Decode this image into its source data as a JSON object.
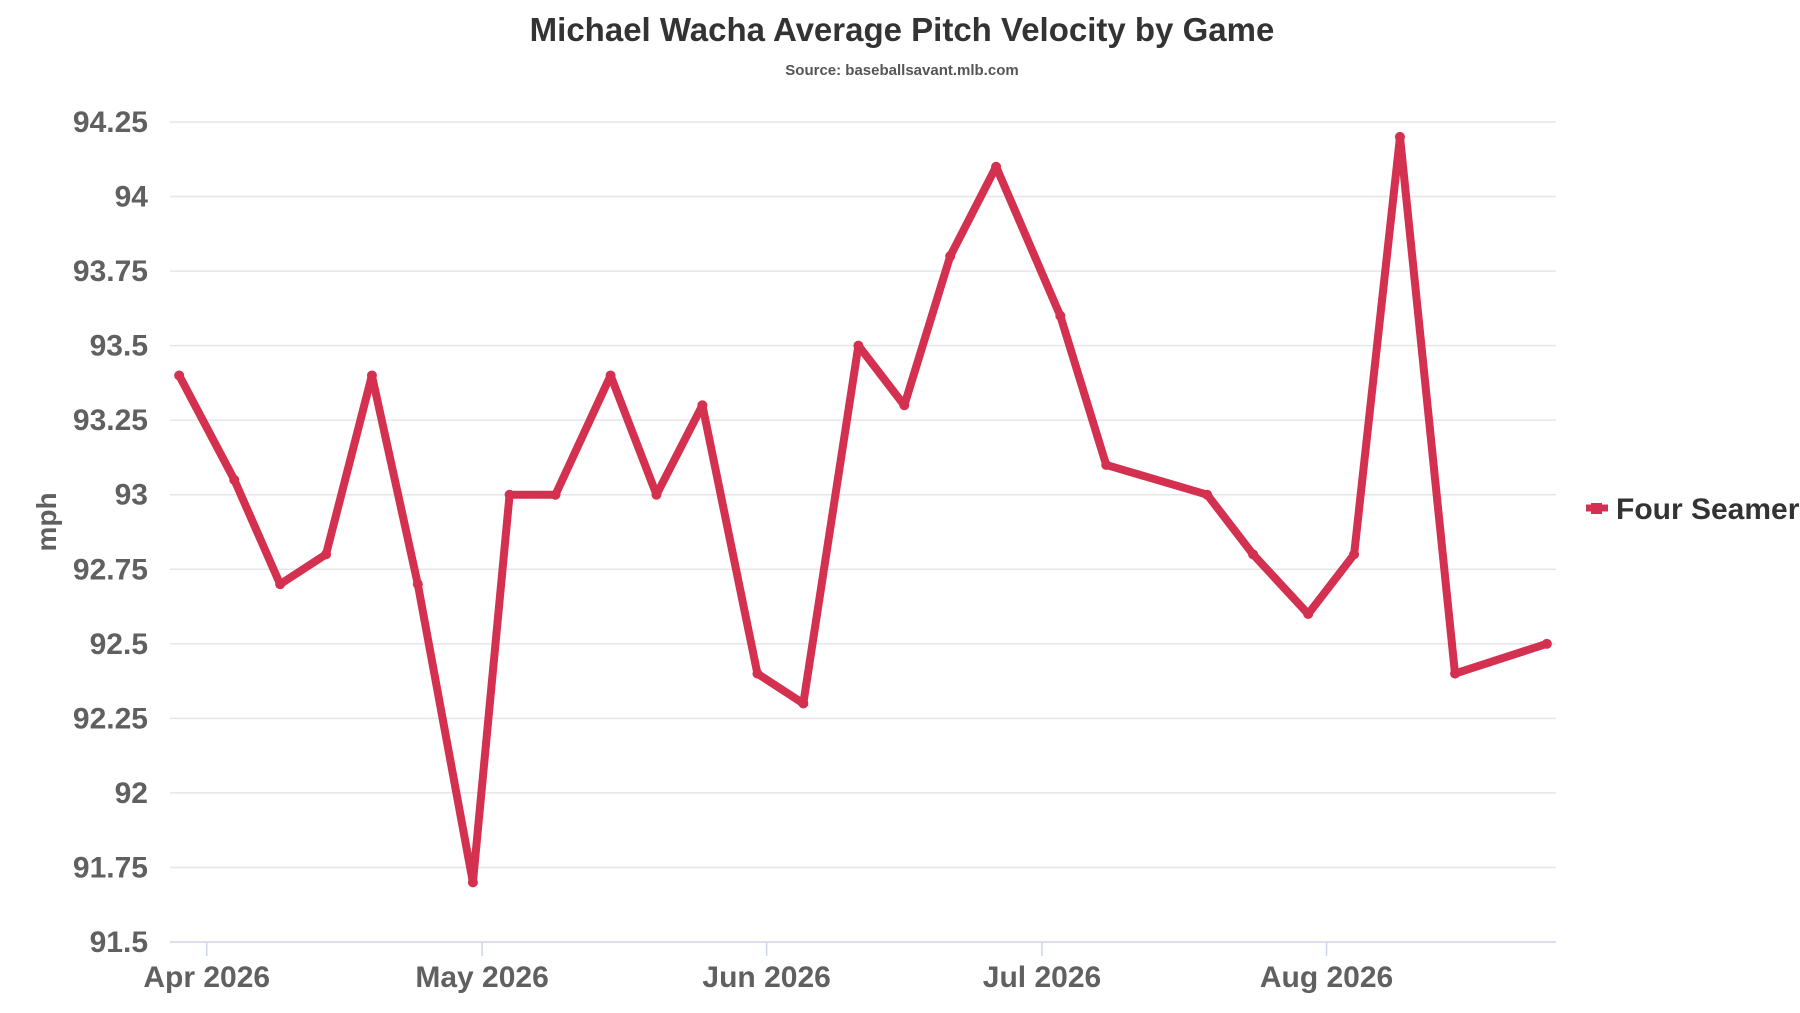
{
  "chart_data": {
    "type": "line",
    "title": "Michael Wacha Average Pitch Velocity by Game",
    "subtitle": "Source: baseballsavant.mlb.com",
    "xlabel": "",
    "ylabel": "mph",
    "ylim": [
      91.5,
      94.25
    ],
    "yticks": [
      91.5,
      91.75,
      92,
      92.25,
      92.5,
      92.75,
      93,
      93.25,
      93.5,
      93.75,
      94,
      94.25
    ],
    "xlim": [
      "2026-03-28",
      "2026-08-26"
    ],
    "xticks": [
      {
        "date": "2026-04-01",
        "label": "Apr 2026"
      },
      {
        "date": "2026-05-01",
        "label": "May 2026"
      },
      {
        "date": "2026-06-01",
        "label": "Jun 2026"
      },
      {
        "date": "2026-07-01",
        "label": "Jul 2026"
      },
      {
        "date": "2026-08-01",
        "label": "Aug 2026"
      }
    ],
    "grid": true,
    "legend_position": "right",
    "series": [
      {
        "name": "Four Seamer",
        "color": "#d4304f",
        "x": [
          "2026-03-29",
          "2026-04-04",
          "2026-04-09",
          "2026-04-14",
          "2026-04-19",
          "2026-04-24",
          "2026-04-30",
          "2026-05-04",
          "2026-05-09",
          "2026-05-15",
          "2026-05-20",
          "2026-05-25",
          "2026-05-31",
          "2026-06-05",
          "2026-06-11",
          "2026-06-16",
          "2026-06-21",
          "2026-06-26",
          "2026-07-03",
          "2026-07-08",
          "2026-07-19",
          "2026-07-24",
          "2026-07-30",
          "2026-08-04",
          "2026-08-09",
          "2026-08-15",
          "2026-08-25"
        ],
        "y": [
          93.4,
          93.05,
          92.7,
          92.8,
          93.4,
          92.7,
          91.7,
          93.0,
          93.0,
          93.4,
          93.0,
          93.3,
          92.4,
          92.3,
          93.5,
          93.3,
          93.8,
          94.1,
          93.6,
          93.1,
          93.0,
          92.8,
          92.6,
          92.8,
          94.2,
          92.4,
          92.5
        ]
      }
    ]
  }
}
